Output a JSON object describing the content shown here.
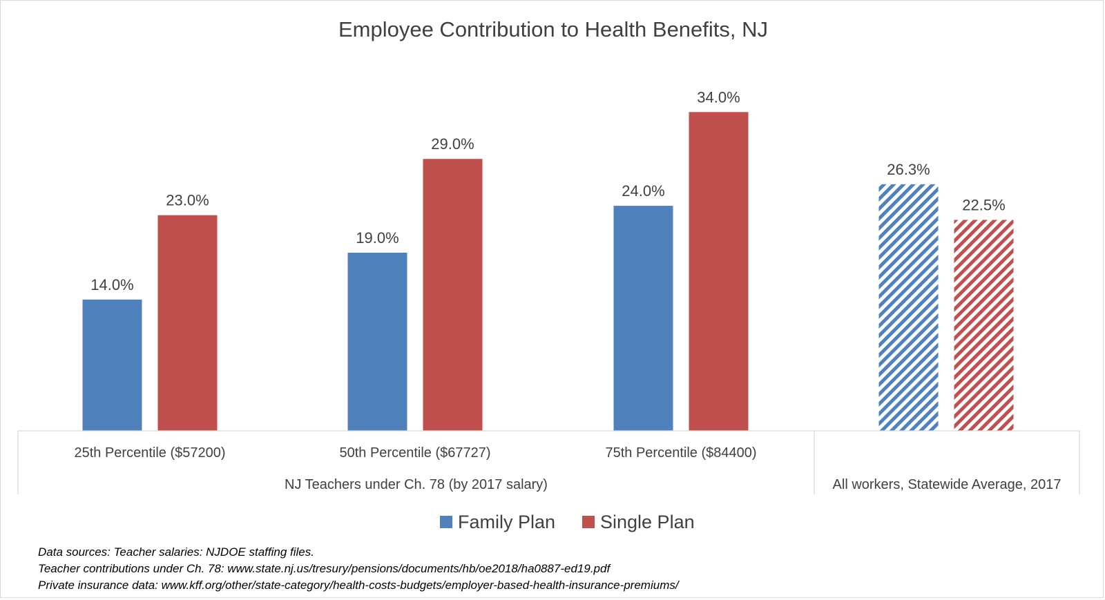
{
  "chart_data": {
    "type": "bar",
    "title": "Employee Contribution to Health Benefits, NJ",
    "categories": [
      "25th Percentile ($57200)",
      "50th Percentile ($67727)",
      "75th Percentile ($84400)",
      ""
    ],
    "category_groups": [
      {
        "label": "NJ Teachers under Ch. 78 (by 2017 salary)",
        "categories": [
          0,
          1,
          2
        ]
      },
      {
        "label": "All workers, Statewide Average, 2017",
        "categories": [
          3
        ]
      }
    ],
    "series": [
      {
        "name": "Family Plan",
        "color": "#4f81bd",
        "values": [
          14.0,
          19.0,
          24.0,
          26.3
        ],
        "value_labels": [
          "14.0%",
          "19.0%",
          "24.0%",
          "26.3%"
        ],
        "hatched": [
          false,
          false,
          false,
          true
        ]
      },
      {
        "name": "Single Plan",
        "color": "#c0504d",
        "values": [
          23.0,
          29.0,
          34.0,
          22.5
        ],
        "value_labels": [
          "23.0%",
          "29.0%",
          "34.0%",
          "22.5%"
        ],
        "hatched": [
          false,
          false,
          false,
          true
        ]
      }
    ],
    "ylim": [
      0,
      35
    ],
    "grid": false,
    "legend_position": "bottom"
  },
  "sources": [
    "Data sources: Teacher salaries: NJDOE staffing files.",
    "Teacher contributions under Ch. 78: www.state.nj.us/tresury/pensions/documents/hb/oe2018/ha0887-ed19.pdf",
    "Private insurance data: www.kff.org/other/state-category/health-costs-budgets/employer-based-health-insurance-premiums/"
  ]
}
